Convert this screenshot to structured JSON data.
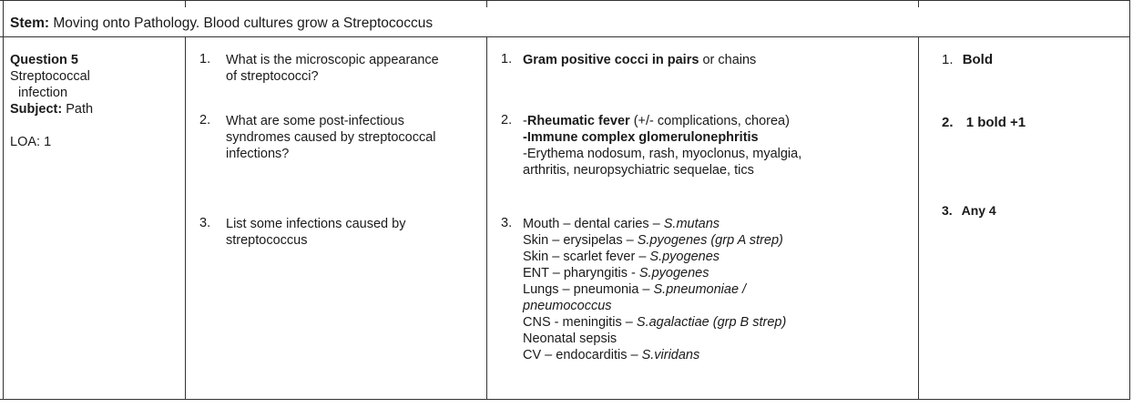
{
  "stem": {
    "label": "Stem:",
    "text": "Moving onto Pathology. Blood cultures grow a Streptococcus"
  },
  "question": {
    "title": "Question 5",
    "topic_line1": "Streptococcal",
    "topic_line2": "infection",
    "subject_label": "Subject:",
    "subject_value": "Path",
    "loa": "LOA: 1"
  },
  "questions": [
    {
      "number": "1.",
      "line1": "What is the microscopic appearance",
      "line2": "of streptococci?"
    },
    {
      "number": "2.",
      "line1": "What are some post-infectious",
      "line2": "syndromes caused by streptococcal",
      "line3": "infections?"
    },
    {
      "number": "3.",
      "line1": "List some infections caused by",
      "line2": "streptococcus"
    }
  ],
  "answers": {
    "a1": {
      "number": "1.",
      "bold": "Gram positive cocci in pairs",
      "rest": "or chains"
    },
    "a2": {
      "number": "2.",
      "l1_dash": "-",
      "l1_bold": "Rheumatic fever",
      "l1_rest": "(+/- complications, chorea)",
      "l2": "-Immune complex glomerulonephritis",
      "l3": "-Erythema nodosum, rash, myoclonus, myalgia,",
      "l4": "arthritis, neuropsychiatric sequelae, tics"
    },
    "a3": {
      "number": "3.",
      "items": [
        {
          "plain": "Mouth – dental caries – ",
          "italic": "S.mutans"
        },
        {
          "plain": "Skin – erysipelas – ",
          "italic": "S.pyogenes (grp A strep)"
        },
        {
          "plain": "Skin – scarlet fever – ",
          "italic": "S.pyogenes"
        },
        {
          "plain": "ENT – pharyngitis - ",
          "italic": "S.pyogenes"
        },
        {
          "plain": "Lungs – pneumonia – ",
          "italic": "S.pneumoniae /"
        },
        {
          "plain": "",
          "italic": "pneumococcus"
        },
        {
          "plain": "CNS - meningitis – ",
          "italic": "S.agalactiae (grp B strep)"
        },
        {
          "plain": "Neonatal sepsis",
          "italic": ""
        },
        {
          "plain": "CV – endocarditis – ",
          "italic": "S.viridans"
        }
      ]
    }
  },
  "marks": [
    {
      "number": "1.",
      "text": "Bold"
    },
    {
      "number": "2.",
      "text": "1 bold +1"
    },
    {
      "number": "3.",
      "text": "Any 4"
    }
  ]
}
